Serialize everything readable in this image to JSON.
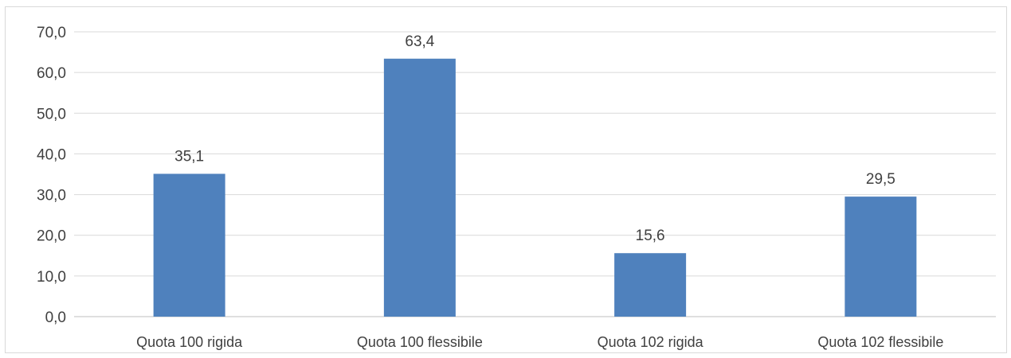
{
  "chart_data": {
    "type": "bar",
    "title": "",
    "categories": [
      "Quota 100 rigida",
      "Quota 100 flessibile",
      "Quota 102 rigida",
      "Quota 102 flessibile"
    ],
    "values": [
      35.1,
      63.4,
      15.6,
      29.5
    ],
    "value_labels": [
      "35,1",
      "63,4",
      "15,6",
      "29,5"
    ],
    "ylim": [
      0,
      70
    ],
    "y_ticks": [
      0,
      10,
      20,
      30,
      40,
      50,
      60,
      70
    ],
    "y_tick_labels": [
      "0,0",
      "10,0",
      "20,0",
      "30,0",
      "40,0",
      "50,0",
      "60,0",
      "70,0"
    ],
    "xlabel": "",
    "ylabel": "",
    "grid": true,
    "legend": "none",
    "colors": {
      "bar": "#4f81bd",
      "grid": "#d9d9d9",
      "text": "#404040",
      "title": "#1f9bd6"
    }
  }
}
